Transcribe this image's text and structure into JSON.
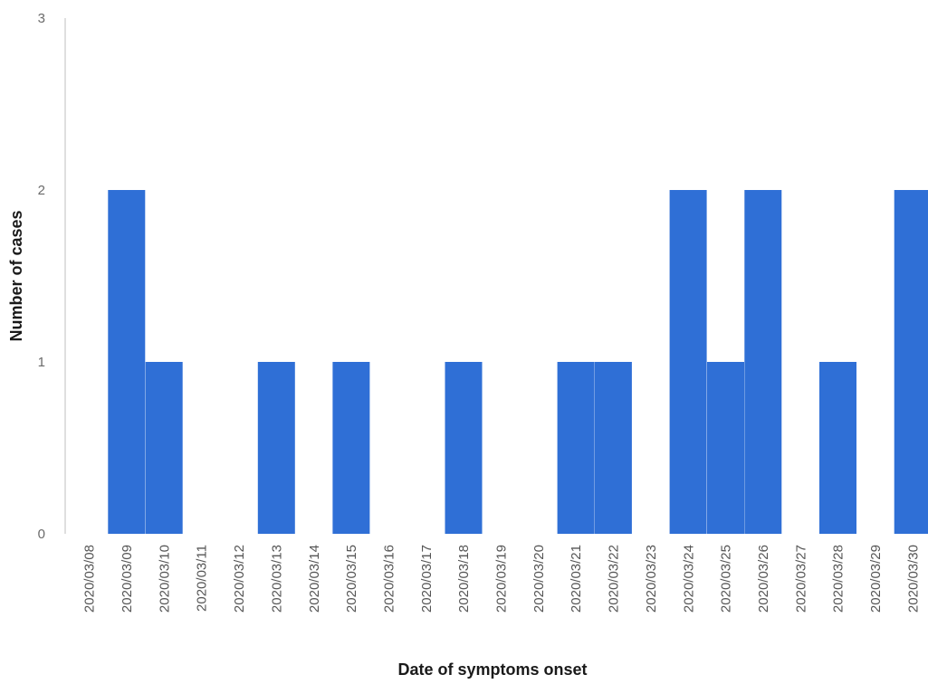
{
  "chart_data": {
    "type": "bar",
    "title": "",
    "xlabel": "Date of symptoms onset",
    "ylabel": "Number of cases",
    "ylim": [
      0,
      3
    ],
    "yticks": [
      "0",
      "1",
      "2",
      "3"
    ],
    "grid": false,
    "legend": "none",
    "bar_color": "#2f6fd6",
    "categories": [
      "2020/03/08",
      "2020/03/09",
      "2020/03/10",
      "2020/03/11",
      "2020/03/12",
      "2020/03/13",
      "2020/03/14",
      "2020/03/15",
      "2020/03/16",
      "2020/03/17",
      "2020/03/18",
      "2020/03/19",
      "2020/03/20",
      "2020/03/21",
      "2020/03/22",
      "2020/03/23",
      "2020/03/24",
      "2020/03/25",
      "2020/03/26",
      "2020/03/27",
      "2020/03/28",
      "2020/03/29",
      "2020/03/30"
    ],
    "values": [
      0,
      2,
      1,
      0,
      0,
      1,
      0,
      1,
      0,
      0,
      1,
      0,
      0,
      1,
      1,
      0,
      2,
      1,
      2,
      0,
      1,
      0,
      2
    ]
  }
}
